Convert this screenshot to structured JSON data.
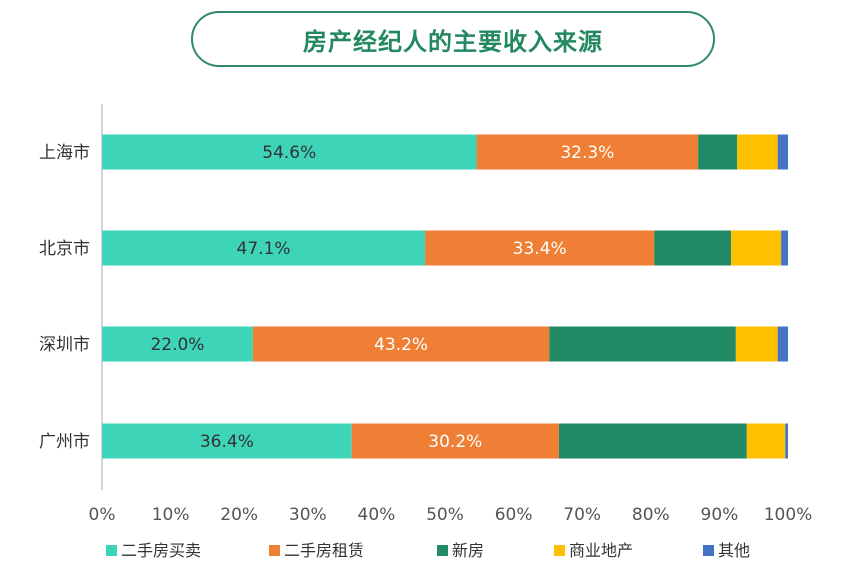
{
  "chart_data": {
    "type": "bar",
    "orientation": "horizontal",
    "stacked": true,
    "title": "房产经纪人的主要收入来源",
    "categories": [
      "上海市",
      "北京市",
      "深圳市",
      "广州市"
    ],
    "series": [
      {
        "name": "二手房买卖",
        "color": "#3dd4b8",
        "values": [
          54.6,
          47.1,
          22.0,
          36.4
        ],
        "labels": [
          "54.6%",
          "47.1%",
          "22.0%",
          "36.4%"
        ],
        "label_color": "#333333"
      },
      {
        "name": "二手房租赁",
        "color": "#ef7f34",
        "values": [
          32.3,
          33.4,
          43.2,
          30.2
        ],
        "labels": [
          "32.3%",
          "33.4%",
          "43.2%",
          "30.2%"
        ],
        "label_color": "#ffffff"
      },
      {
        "name": "新房",
        "color": "#228a64",
        "values": [
          5.7,
          11.2,
          27.2,
          27.4
        ]
      },
      {
        "name": "商业地产",
        "color": "#ffc000",
        "values": [
          5.9,
          7.3,
          6.1,
          5.6
        ]
      },
      {
        "name": "其他",
        "color": "#4472c4",
        "values": [
          1.5,
          1.0,
          1.5,
          0.4
        ]
      }
    ],
    "xlim": [
      0,
      100
    ],
    "xticks": [
      0,
      10,
      20,
      30,
      40,
      50,
      60,
      70,
      80,
      90,
      100
    ],
    "xtick_labels": [
      "0%",
      "10%",
      "20%",
      "30%",
      "40%",
      "50%",
      "60%",
      "70%",
      "80%",
      "90%",
      "100%"
    ],
    "grid": false,
    "legend_position": "bottom"
  }
}
